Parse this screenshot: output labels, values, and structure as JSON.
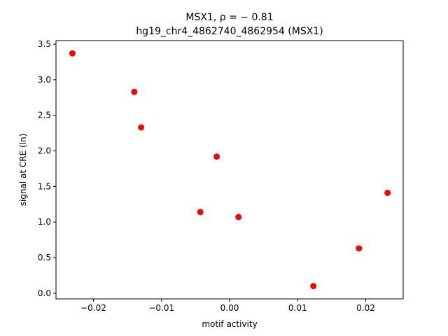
{
  "chart_data": {
    "type": "scatter",
    "title_line1": "MSX1, ρ = − 0.81",
    "title_line2": "hg19_chr4_4862740_4862954 (MSX1)",
    "xlabel": "motif activity",
    "ylabel": "signal at CRE (ln)",
    "xlim": [
      -0.0255,
      0.0255
    ],
    "ylim": [
      -0.08,
      3.55
    ],
    "xticks": [
      -0.02,
      -0.01,
      0.0,
      0.01,
      0.02
    ],
    "xtick_labels": [
      "−0.02",
      "−0.01",
      "0.00",
      "0.01",
      "0.02"
    ],
    "yticks": [
      0.0,
      0.5,
      1.0,
      1.5,
      2.0,
      2.5,
      3.0,
      3.5
    ],
    "ytick_labels": [
      "0.0",
      "0.5",
      "1.0",
      "1.5",
      "2.0",
      "2.5",
      "3.0",
      "3.5"
    ],
    "marker_color": "#ff0000",
    "grid": false,
    "points": [
      {
        "x": -0.0231,
        "y": 3.37
      },
      {
        "x": -0.014,
        "y": 2.83
      },
      {
        "x": -0.013,
        "y": 2.33
      },
      {
        "x": -0.0019,
        "y": 1.92
      },
      {
        "x": -0.0043,
        "y": 1.14
      },
      {
        "x": 0.0013,
        "y": 1.07
      },
      {
        "x": 0.0123,
        "y": 0.1
      },
      {
        "x": 0.019,
        "y": 0.63
      },
      {
        "x": 0.0232,
        "y": 1.41
      }
    ]
  }
}
